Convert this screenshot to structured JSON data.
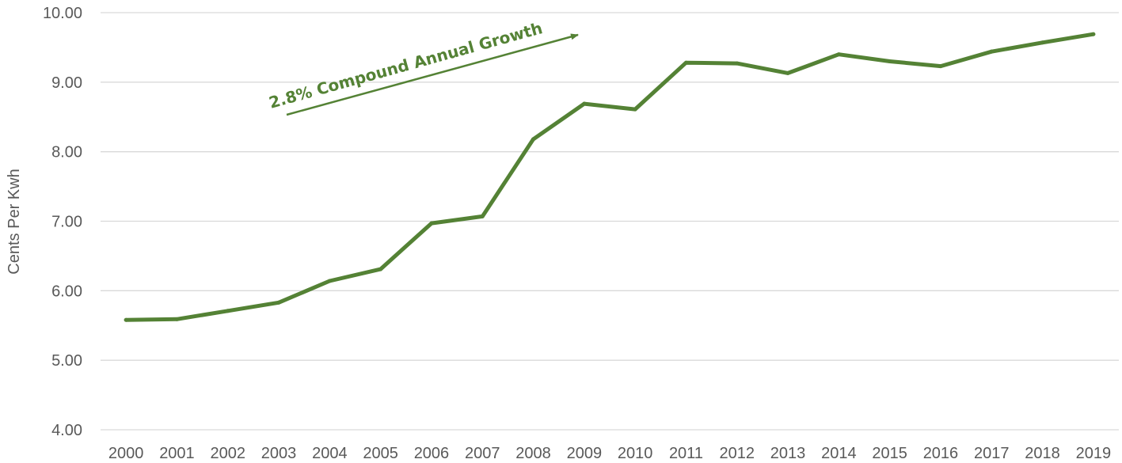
{
  "chart_data": {
    "type": "line",
    "title": "",
    "xlabel": "",
    "ylabel": "Cents Per Kwh",
    "categories": [
      "2000",
      "2001",
      "2002",
      "2003",
      "2004",
      "2005",
      "2006",
      "2007",
      "2008",
      "2009",
      "2010",
      "2011",
      "2012",
      "2013",
      "2014",
      "2015",
      "2016",
      "2017",
      "2018",
      "2019"
    ],
    "series": [
      {
        "values": [
          5.58,
          5.59,
          5.71,
          5.83,
          6.14,
          6.31,
          6.97,
          7.07,
          8.18,
          8.69,
          8.61,
          9.28,
          9.27,
          9.13,
          9.4,
          9.3,
          9.23,
          9.44,
          9.57,
          9.69
        ],
        "color": "#548235"
      }
    ],
    "ylim": [
      4.0,
      10.0
    ],
    "y_ticks": [
      "4.00",
      "5.00",
      "6.00",
      "7.00",
      "8.00",
      "9.00",
      "10.00"
    ],
    "grid": true,
    "legend": "none",
    "annotation": {
      "text": "2.8% Compound Annual Growth",
      "color": "#548235",
      "shape": "arrow"
    }
  }
}
